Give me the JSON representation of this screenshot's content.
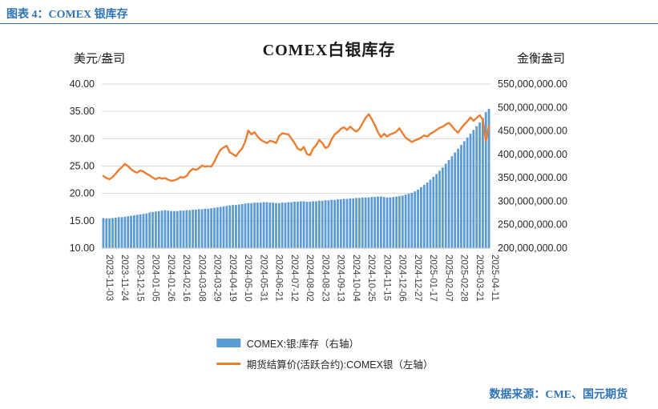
{
  "page": {
    "header": "图表 4：COMEX 银库存",
    "source": "数据来源：CME、国元期货"
  },
  "chart_data": {
    "type": "bar",
    "subtype": "bar+line dual axis",
    "title": "COMEX白银库存",
    "legend_position": "bottom",
    "grid": "horizontal",
    "left_axis": {
      "header": "美元/盎司",
      "min": 10,
      "max": 40,
      "ticks": [
        "40.00",
        "35.00",
        "30.00",
        "25.00",
        "20.00",
        "15.00",
        "10.00"
      ]
    },
    "right_axis": {
      "header": "金衡盎司",
      "min": 200,
      "max": 550,
      "values_unit": "million troy ounces",
      "ticks": [
        "550,000,000.00",
        "500,000,000.00",
        "450,000,000.00",
        "400,000,000.00",
        "350,000,000.00",
        "300,000,000.00",
        "250,000,000.00",
        "200,000,000.00"
      ]
    },
    "x_tick_labels": [
      "2023-11-03",
      "2023-11-24",
      "2023-12-15",
      "2024-01-05",
      "2024-01-26",
      "2024-02-16",
      "2024-03-08",
      "2024-03-29",
      "2024-04-19",
      "2024-05-10",
      "2024-05-31",
      "2024-06-21",
      "2024-07-12",
      "2024-08-02",
      "2024-08-23",
      "2024-09-13",
      "2024-10-04",
      "2024-10-25",
      "2024-11-15",
      "2024-12-06",
      "2024-12-27",
      "2025-01-17",
      "2025-02-07",
      "2025-02-28",
      "2025-03-21",
      "2025-04-11"
    ],
    "points_per_tick": 5,
    "series": [
      {
        "name": "COMEX:银:库存（右轴）",
        "type": "bar",
        "axis": "right",
        "color": "#5B9BD5",
        "unit": "million troy ounces",
        "values": [
          264,
          263,
          263,
          264,
          265,
          266,
          266,
          267,
          268,
          269,
          270,
          271,
          272,
          273,
          274,
          276,
          277,
          278,
          279,
          280,
          281,
          280,
          279,
          279,
          279,
          280,
          280,
          281,
          281,
          282,
          282,
          283,
          283,
          284,
          284,
          285,
          286,
          287,
          288,
          289,
          290,
          291,
          292,
          292,
          293,
          294,
          295,
          296,
          296,
          297,
          297,
          297,
          298,
          298,
          297,
          297,
          296,
          296,
          297,
          297,
          298,
          298,
          299,
          299,
          300,
          300,
          299,
          299,
          300,
          300,
          301,
          301,
          302,
          302,
          303,
          303,
          304,
          304,
          305,
          305,
          306,
          306,
          307,
          307,
          308,
          308,
          308,
          309,
          309,
          310,
          310,
          309,
          308,
          308,
          309,
          310,
          311,
          312,
          314,
          316,
          318,
          321,
          325,
          330,
          335,
          340,
          346,
          352,
          358,
          365,
          372,
          380,
          388,
          396,
          404,
          412,
          420,
          428,
          436,
          444,
          452,
          460,
          468,
          478,
          490,
          497
        ]
      },
      {
        "name": "期货结算价(活跃合约):COMEX银（左轴）",
        "type": "line",
        "axis": "left",
        "color": "#ED7D31",
        "unit": "USD/oz",
        "values": [
          23.2,
          22.8,
          22.6,
          23.0,
          23.6,
          24.3,
          24.8,
          25.4,
          25.0,
          24.4,
          24.0,
          23.8,
          24.2,
          24.0,
          23.6,
          23.3,
          22.9,
          22.6,
          22.9,
          22.7,
          22.8,
          22.5,
          22.3,
          22.4,
          22.6,
          23.0,
          22.9,
          23.2,
          24.0,
          24.5,
          24.3,
          24.6,
          25.1,
          24.9,
          25.0,
          24.9,
          25.8,
          27.0,
          28.0,
          28.4,
          28.7,
          27.5,
          27.2,
          26.8,
          27.6,
          28.2,
          29.5,
          31.5,
          30.8,
          31.2,
          30.4,
          29.8,
          29.5,
          29.2,
          29.6,
          29.5,
          29.2,
          30.5,
          31.0,
          30.9,
          30.8,
          30.0,
          29.2,
          28.2,
          27.9,
          28.5,
          27.2,
          27.0,
          28.2,
          28.8,
          29.8,
          29.2,
          28.3,
          28.6,
          29.9,
          30.8,
          31.2,
          31.8,
          32.1,
          31.6,
          32.2,
          31.7,
          31.3,
          31.8,
          32.8,
          33.8,
          34.5,
          33.6,
          32.5,
          31.2,
          30.3,
          30.9,
          30.4,
          30.8,
          31.0,
          31.3,
          31.9,
          31.0,
          30.2,
          29.8,
          29.4,
          29.7,
          29.9,
          30.2,
          30.6,
          30.4,
          30.9,
          31.2,
          31.6,
          32.0,
          32.2,
          32.6,
          32.9,
          32.3,
          31.6,
          31.1,
          31.9,
          32.6,
          33.2,
          33.9,
          33.3,
          33.8,
          34.3,
          33.5,
          29.6,
          32.3
        ]
      }
    ],
    "colors": {
      "bar": "#5B9BD5",
      "line": "#ED7D31",
      "gridline": "#D9D9D9",
      "accent_text": "#2E74B5"
    }
  }
}
